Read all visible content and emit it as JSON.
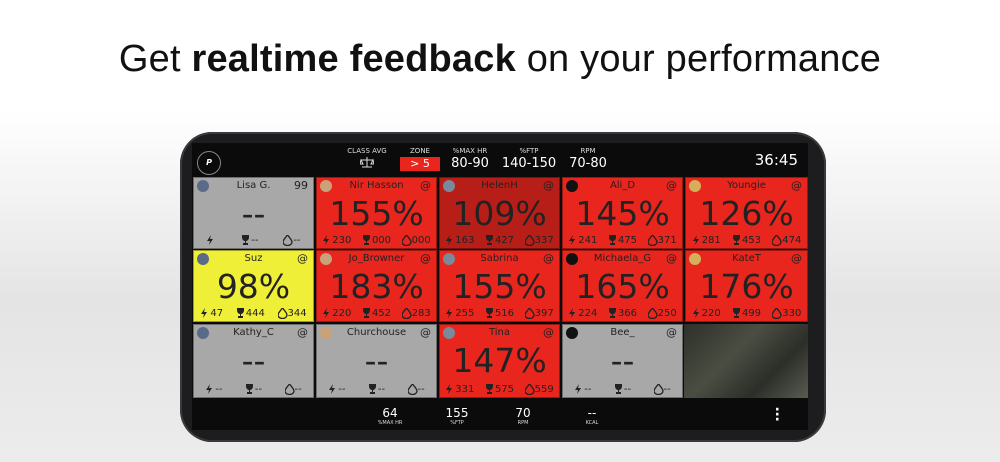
{
  "header": {
    "title_pre": "Get",
    "title_bold": "realtime feedback",
    "title_post": "on your performance"
  },
  "top_bar": {
    "class_avg": "CLASS AVG",
    "zone": {
      "label": "ZONE",
      "value": "> 5"
    },
    "stats": [
      {
        "label": "%MAX HR",
        "value": "80-90"
      },
      {
        "label": "%FTP",
        "value": "140-150"
      },
      {
        "label": "RPM",
        "value": "70-80"
      }
    ],
    "time": "36:45"
  },
  "tiles": [
    [
      {
        "name": "Lisa G.",
        "badge": "99",
        "value": "--",
        "trophy": "--",
        "fire": "--",
        "color": "#a8a8a8"
      },
      {
        "name": "Nir Hasson",
        "badge": "@",
        "value": "155%",
        "power": "230",
        "trophy": "000",
        "fire": "000",
        "color": "#e8261e"
      },
      {
        "name": "HelenH",
        "badge": "@",
        "value": "109%",
        "power": "163",
        "trophy": "427",
        "fire": "337",
        "color": "#b81e18"
      },
      {
        "name": "Ali_D",
        "badge": "@",
        "value": "145%",
        "power": "241",
        "trophy": "475",
        "fire": "371",
        "color": "#e8261e"
      },
      {
        "name": "Youngie",
        "badge": "@",
        "value": "126%",
        "power": "281",
        "trophy": "453",
        "fire": "474",
        "color": "#e8261e"
      }
    ],
    [
      {
        "name": "Suz",
        "badge": "@",
        "value": "98%",
        "power": "47",
        "trophy": "444",
        "fire": "344",
        "color": "#f0ef38"
      },
      {
        "name": "Jo_Browner",
        "badge": "@",
        "value": "183%",
        "power": "220",
        "trophy": "452",
        "fire": "283",
        "color": "#e8261e"
      },
      {
        "name": "Sabrina",
        "badge": "@",
        "value": "155%",
        "power": "255",
        "trophy": "516",
        "fire": "397",
        "color": "#e8261e"
      },
      {
        "name": "Michaela_G",
        "badge": "@",
        "value": "165%",
        "power": "224",
        "trophy": "366",
        "fire": "250",
        "color": "#e8261e"
      },
      {
        "name": "KateT",
        "badge": "@",
        "value": "176%",
        "power": "220",
        "trophy": "499",
        "fire": "330",
        "color": "#e8261e"
      }
    ],
    [
      {
        "name": "Kathy_C",
        "badge": "@",
        "value": "--",
        "power": "--",
        "trophy": "--",
        "fire": "--",
        "color": "#a8a8a8"
      },
      {
        "name": "Churchouse",
        "badge": "@",
        "value": "--",
        "power": "--",
        "trophy": "--",
        "fire": "--",
        "color": "#a8a8a8"
      },
      {
        "name": "Tina",
        "badge": "@",
        "value": "147%",
        "power": "331",
        "trophy": "575",
        "fire": "559",
        "color": "#e8261e"
      },
      {
        "name": "Bee_",
        "badge": "@",
        "value": "--",
        "power": "--",
        "trophy": "--",
        "fire": "--",
        "color": "#a8a8a8"
      }
    ]
  ],
  "bottom_bar": [
    {
      "value": "64",
      "label": "%MAX HR"
    },
    {
      "value": "155",
      "label": "%FTP"
    },
    {
      "value": "70",
      "label": "RPM"
    },
    {
      "value": "--",
      "label": "KCAL"
    }
  ]
}
